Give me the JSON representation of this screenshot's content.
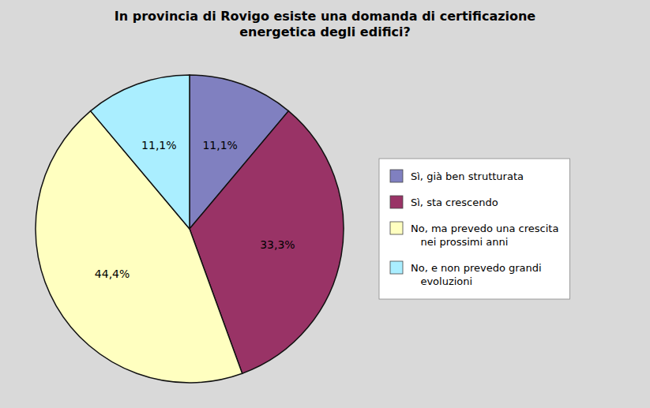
{
  "chart_data": {
    "type": "pie",
    "title": "In provincia di Rovigo esiste una domanda di certificazione\nenergetica degli edifici?",
    "categories": [
      "Sì, già ben strutturata",
      "Sì, sta crescendo",
      "No, ma prevedo una crescita\n   nei prossimi anni",
      "No, e non prevedo grandi\n   evoluzioni"
    ],
    "values": [
      11.1,
      33.3,
      44.4,
      11.1
    ],
    "value_labels": [
      "11,1%",
      "33,3%",
      "44,4%",
      "11,1%"
    ],
    "data_labels": true,
    "colors": [
      "#8080C0",
      "#993366",
      "#FFFFC0",
      "#AAEEFF"
    ],
    "legend": "right"
  }
}
